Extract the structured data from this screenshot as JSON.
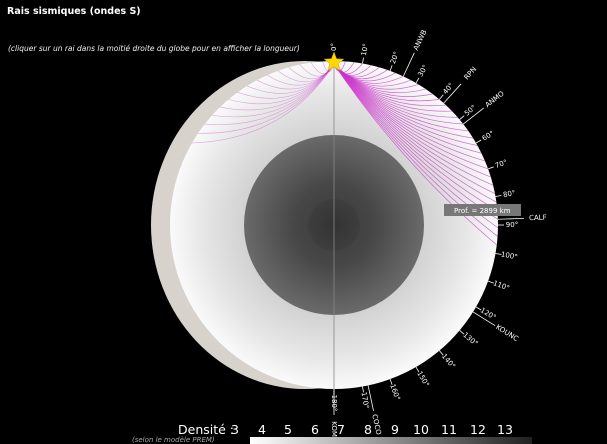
{
  "title": "Rais sismiques (ondes S)",
  "hint": "(cliquer sur un rai dans la moitié droite du globe pour en afficher la longueur)",
  "depth_readout": "Prof. = 2899 km",
  "angle_ticks": [
    "0°",
    "10°",
    "20°",
    "30°",
    "40°",
    "50°",
    "60°",
    "70°",
    "80°",
    "90°",
    "100°",
    "110°",
    "120°",
    "130°",
    "140°",
    "150°",
    "160°",
    "170°",
    "180°"
  ],
  "stations": [
    "ANWB",
    "RPN",
    "ANMO",
    "CALF",
    "KOUNC",
    "COCO",
    "KOM"
  ],
  "legend": {
    "label": "Densité :",
    "values": [
      "3",
      "4",
      "5",
      "6",
      "7",
      "8",
      "9",
      "10",
      "11",
      "12",
      "13"
    ],
    "subtitle": "(selon le modèle PREM)"
  },
  "colors": {
    "background": "#000000",
    "ray": "#cc33cc",
    "star": "#ffd700",
    "mantle_light": "#f4f4f4",
    "mantle_dark": "#cfcfcf",
    "outer_core": "#5c5c5c",
    "inner_core": "#3a3a3a",
    "shadow": "#d6d0cb"
  },
  "icons": {
    "source": "star-icon"
  }
}
